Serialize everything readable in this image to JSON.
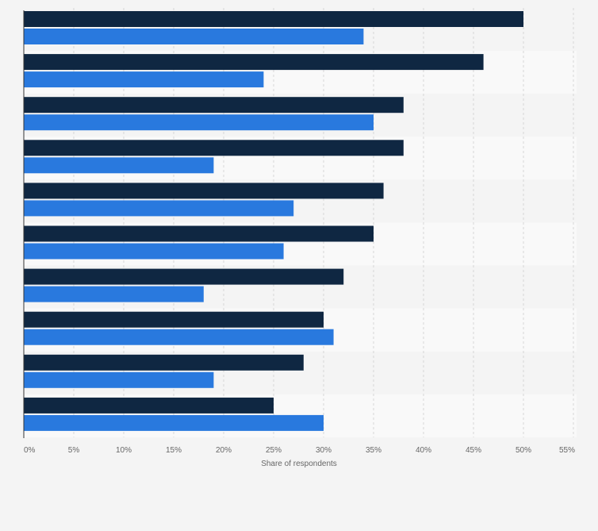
{
  "chart_data": {
    "type": "bar",
    "orientation": "horizontal",
    "categories": [
      "",
      "",
      "",
      "",
      "",
      "",
      "",
      "",
      "",
      ""
    ],
    "series": [
      {
        "values": [
          50,
          46,
          38,
          38,
          36,
          35,
          32,
          30,
          28,
          25
        ]
      },
      {
        "values": [
          34,
          24,
          35,
          19,
          27,
          26,
          18,
          31,
          19,
          30
        ]
      }
    ],
    "xlim": [
      0,
      55
    ],
    "xticks": [
      0,
      5,
      10,
      15,
      20,
      25,
      30,
      35,
      40,
      45,
      50,
      55
    ],
    "xtick_labels": [
      "0%",
      "5%",
      "10%",
      "15%",
      "20%",
      "25%",
      "30%",
      "35%",
      "40%",
      "45%",
      "50%",
      "55%"
    ],
    "xlabel": "Share of respondents",
    "ylabel": "",
    "title": "",
    "grid": true,
    "legend": "none",
    "colors": {
      "series": [
        "#0f2742",
        "#2979de"
      ],
      "band_odd": "#f4f4f4",
      "band_even": "#f9f9f9",
      "grid": "#d6d6d6",
      "axis": "#333333",
      "text": "#666666"
    }
  }
}
